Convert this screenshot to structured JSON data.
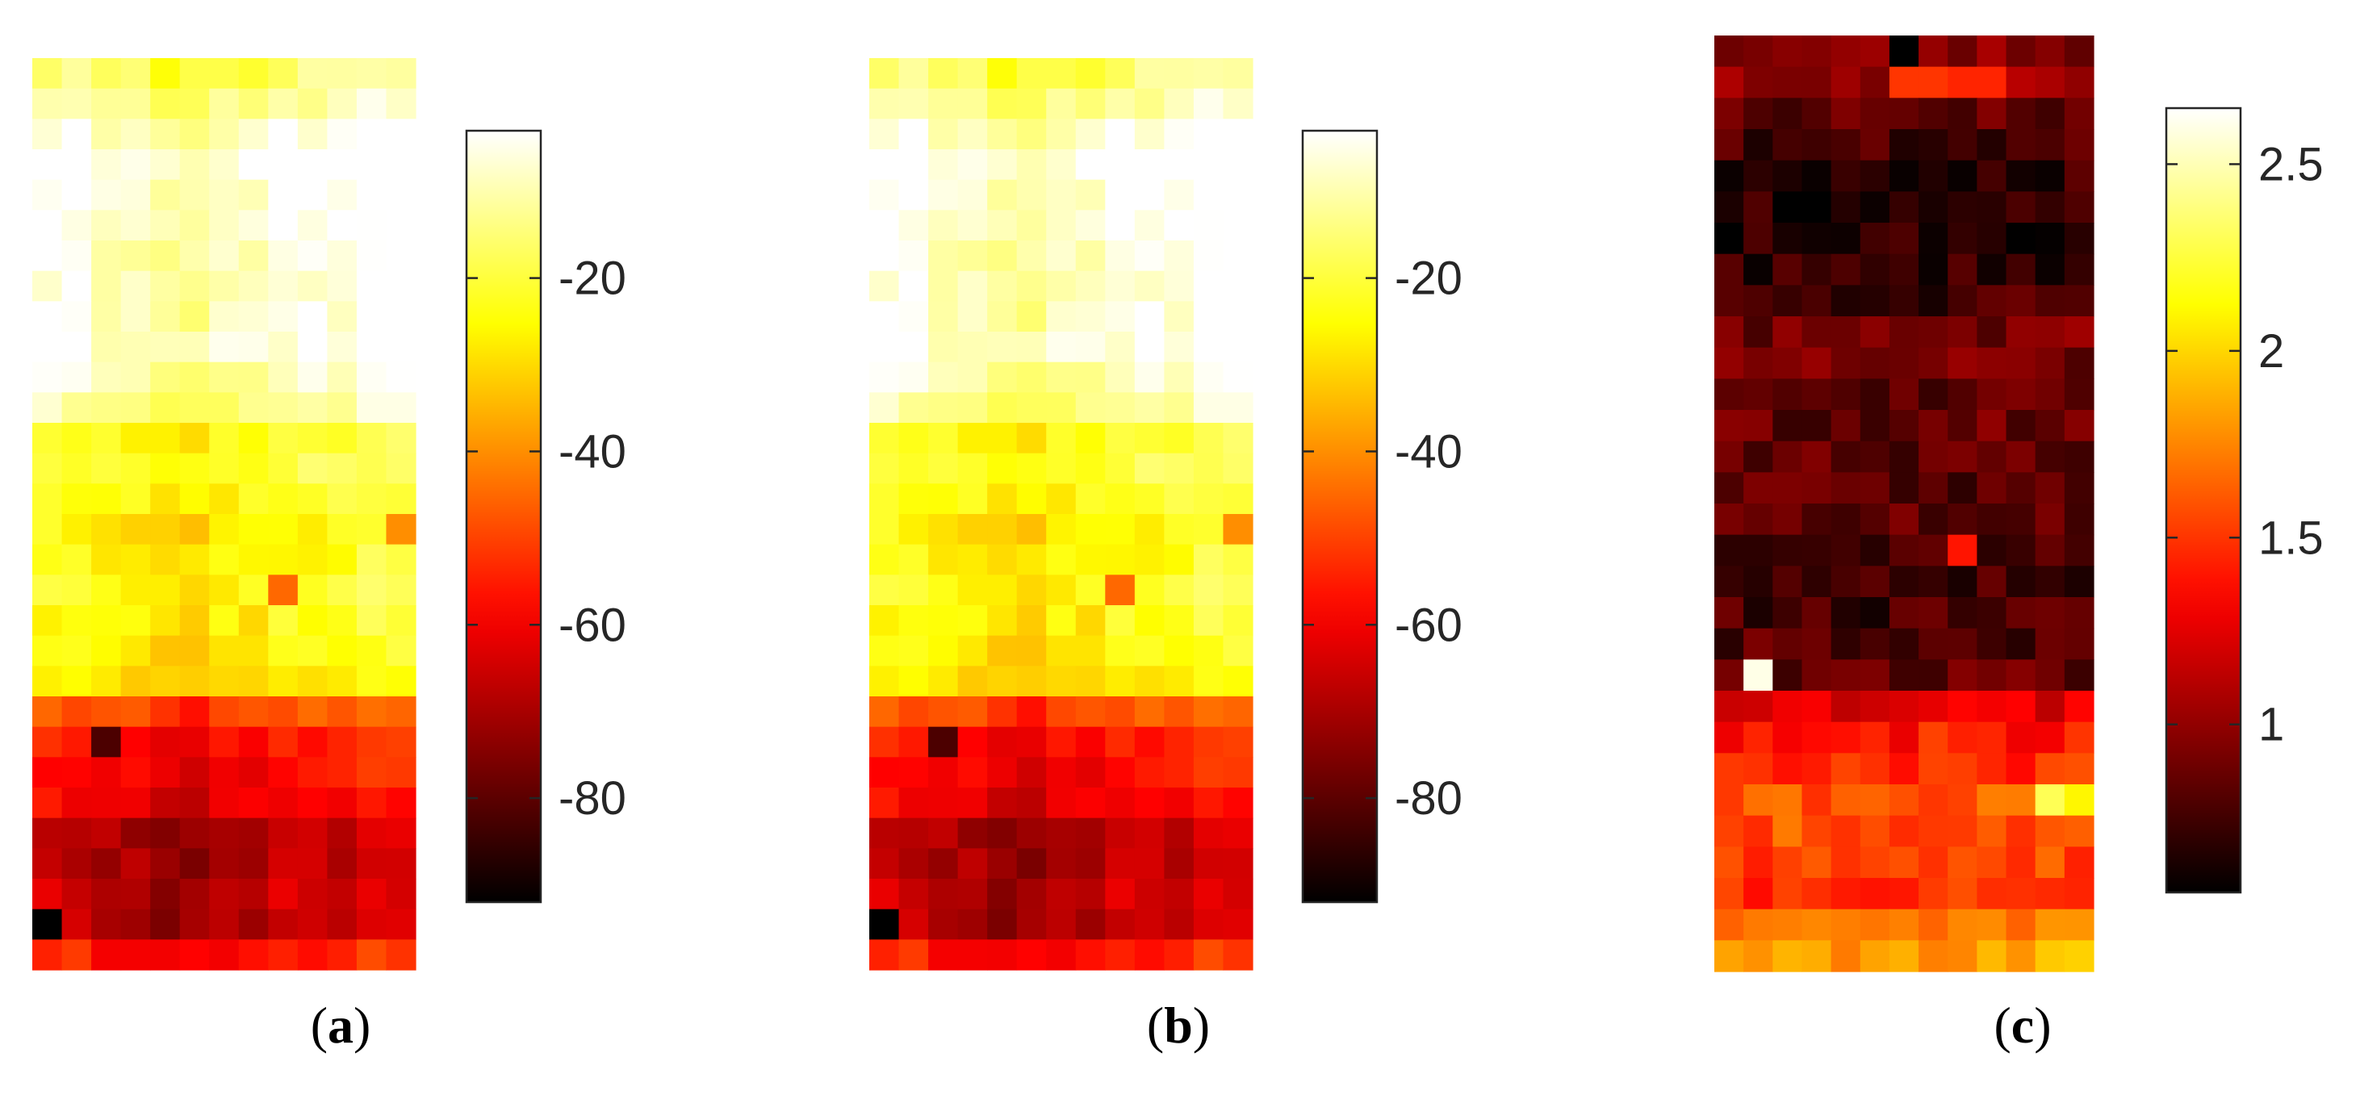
{
  "chart_data": [
    {
      "type": "heatmap",
      "panel_label": "a",
      "rows": 30,
      "cols": 13,
      "colormap": "hot",
      "clim": [
        -92,
        -3
      ],
      "colorbar_ticks": [
        -20,
        -40,
        -60,
        -80
      ],
      "colorbar_labels": [
        "-20",
        "-40",
        "-60",
        "-80"
      ],
      "row_profile": [
        -18,
        -14,
        -8,
        -5,
        -6,
        -8,
        -9,
        -9,
        -9,
        -8,
        -10,
        -14,
        -24,
        -22,
        -25,
        -28,
        -27,
        -25,
        -27,
        -28,
        -30,
        -50,
        -58,
        -60,
        -62,
        -70,
        -70,
        -68,
        -70,
        -58
      ],
      "col_profile": [
        1,
        1,
        0,
        0,
        -1,
        -1,
        0,
        0,
        1,
        1,
        1,
        2,
        2
      ],
      "noise_seed": 7,
      "noise_amp": 7,
      "anomalies": [
        {
          "row": 28,
          "col": 0,
          "value": -92
        },
        {
          "row": 22,
          "col": 2,
          "value": -82
        },
        {
          "row": 17,
          "col": 8,
          "value": -45
        },
        {
          "row": 15,
          "col": 12,
          "value": -40
        }
      ]
    },
    {
      "type": "heatmap",
      "panel_label": "b",
      "rows": 30,
      "cols": 13,
      "colormap": "hot",
      "clim": [
        -92,
        -3
      ],
      "colorbar_ticks": [
        -20,
        -40,
        -60,
        -80
      ],
      "colorbar_labels": [
        "-20",
        "-40",
        "-60",
        "-80"
      ],
      "row_profile": [
        -18,
        -14,
        -8,
        -5,
        -6,
        -8,
        -9,
        -9,
        -9,
        -8,
        -10,
        -14,
        -24,
        -22,
        -25,
        -28,
        -27,
        -25,
        -27,
        -28,
        -30,
        -50,
        -58,
        -60,
        -62,
        -70,
        -70,
        -68,
        -70,
        -58
      ],
      "col_profile": [
        1,
        1,
        0,
        0,
        -1,
        -1,
        0,
        0,
        1,
        1,
        1,
        2,
        2
      ],
      "noise_seed": 7,
      "noise_amp": 7,
      "anomalies": [
        {
          "row": 28,
          "col": 0,
          "value": -92
        },
        {
          "row": 22,
          "col": 2,
          "value": -82
        },
        {
          "row": 17,
          "col": 8,
          "value": -45
        },
        {
          "row": 15,
          "col": 12,
          "value": -40
        }
      ]
    },
    {
      "type": "heatmap",
      "panel_label": "c",
      "rows": 30,
      "cols": 13,
      "colormap": "hot",
      "clim": [
        0.55,
        2.65
      ],
      "colorbar_ticks": [
        2.5,
        2,
        1.5,
        1
      ],
      "colorbar_labels": [
        "2.5",
        "2",
        "1.5",
        "1"
      ],
      "row_profile": [
        0.95,
        1.0,
        0.85,
        0.75,
        0.7,
        0.65,
        0.65,
        0.7,
        0.75,
        0.9,
        0.9,
        0.85,
        0.85,
        0.85,
        0.8,
        0.85,
        0.8,
        0.75,
        0.75,
        0.8,
        0.85,
        1.25,
        1.4,
        1.45,
        1.6,
        1.6,
        1.55,
        1.45,
        1.7,
        1.85
      ],
      "col_profile": [
        0.05,
        0.05,
        0,
        0,
        -0.05,
        -0.05,
        0,
        0,
        0.05,
        0.05,
        0.05,
        0.1,
        0.1
      ],
      "noise_seed": 23,
      "noise_amp": 0.28,
      "anomalies": [
        {
          "row": 1,
          "col": 6,
          "value": 1.5
        },
        {
          "row": 1,
          "col": 7,
          "value": 1.5
        },
        {
          "row": 1,
          "col": 8,
          "value": 1.45
        },
        {
          "row": 1,
          "col": 9,
          "value": 1.45
        },
        {
          "row": 0,
          "col": 6,
          "value": 0.55
        },
        {
          "row": 20,
          "col": 1,
          "value": 2.6
        },
        {
          "row": 16,
          "col": 8,
          "value": 1.4
        },
        {
          "row": 24,
          "col": 11,
          "value": 2.3
        },
        {
          "row": 24,
          "col": 12,
          "value": 2.1
        }
      ]
    }
  ]
}
